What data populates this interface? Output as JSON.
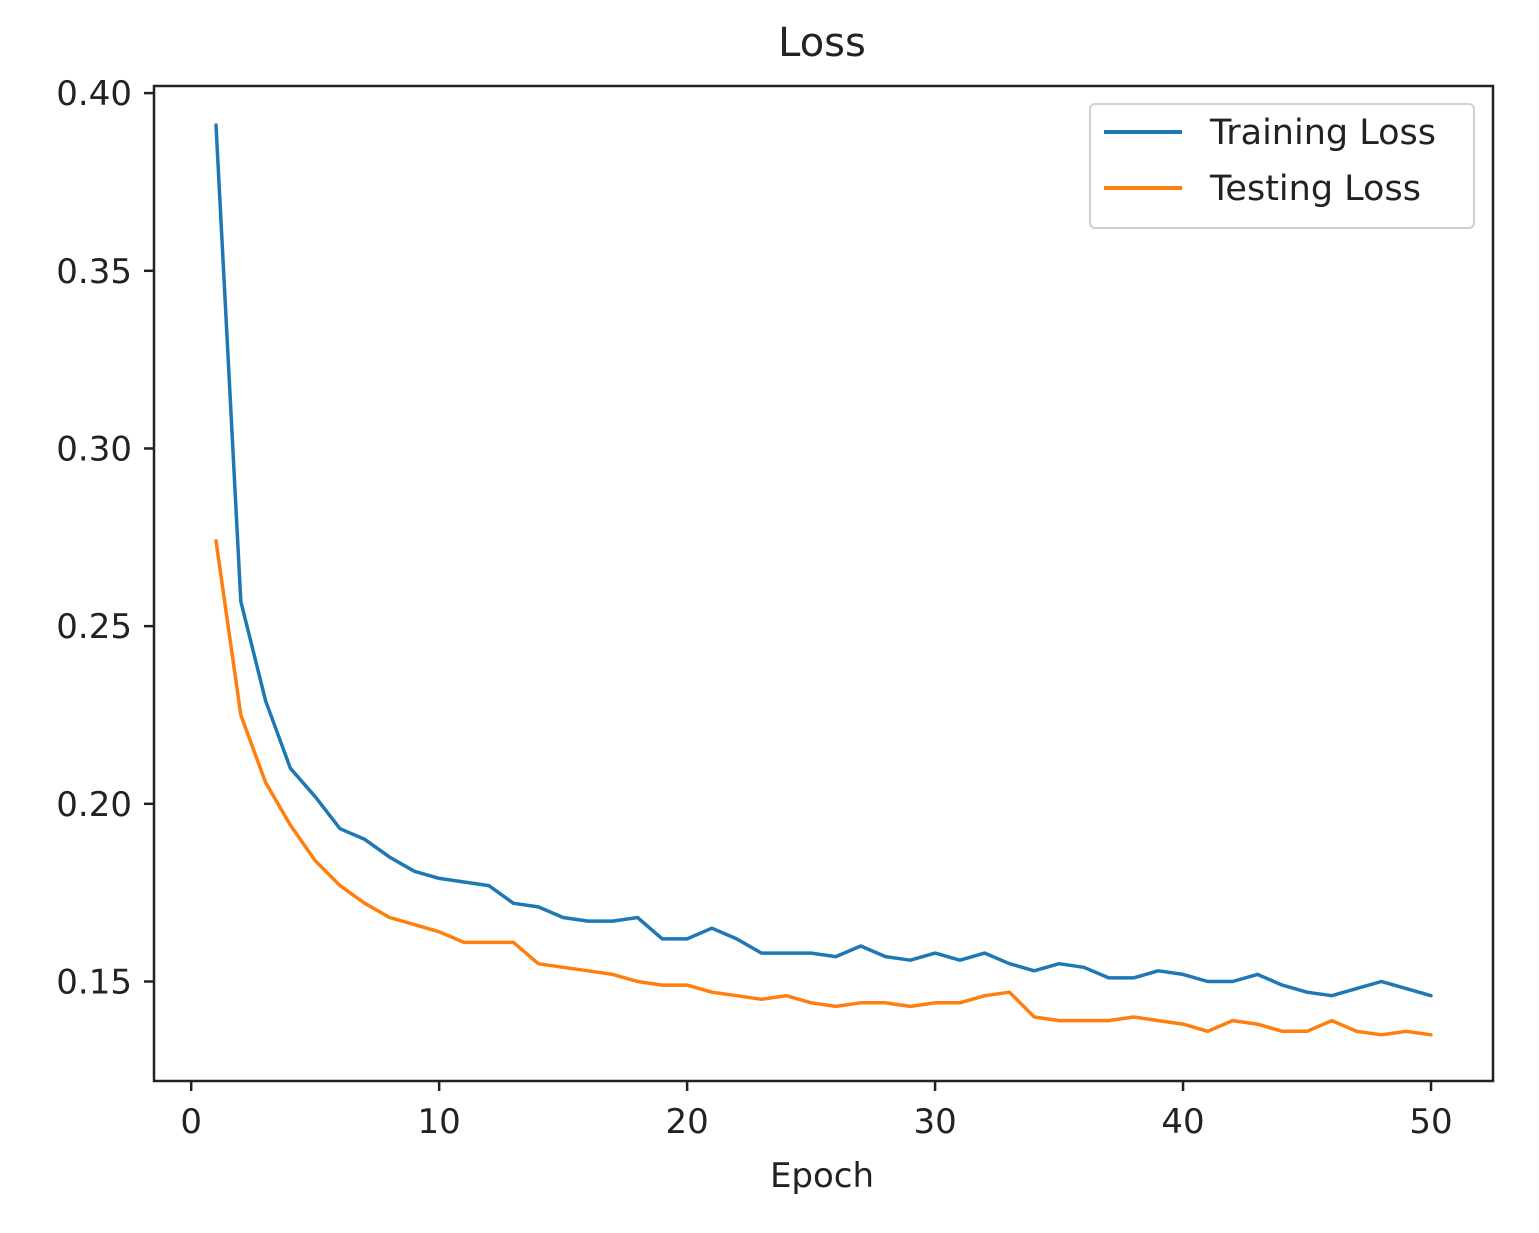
{
  "chart_data": {
    "type": "line",
    "title": "Loss",
    "xlabel": "Epoch",
    "ylabel": "",
    "xlim": [
      -1.5,
      52.5
    ],
    "ylim": [
      0.122,
      0.402
    ],
    "xticks": [
      0,
      10,
      20,
      30,
      40,
      50
    ],
    "xtick_labels": [
      "0",
      "10",
      "20",
      "30",
      "40",
      "50"
    ],
    "yticks": [
      0.15,
      0.2,
      0.25,
      0.3,
      0.35,
      0.4
    ],
    "ytick_labels": [
      "0.15",
      "0.20",
      "0.25",
      "0.30",
      "0.35",
      "0.40"
    ],
    "grid": false,
    "legend_position": "top-right",
    "x": [
      1,
      2,
      3,
      4,
      5,
      6,
      7,
      8,
      9,
      10,
      11,
      12,
      13,
      14,
      15,
      16,
      17,
      18,
      19,
      20,
      21,
      22,
      23,
      24,
      25,
      26,
      27,
      28,
      29,
      30,
      31,
      32,
      33,
      34,
      35,
      36,
      37,
      38,
      39,
      40,
      41,
      42,
      43,
      44,
      45,
      46,
      47,
      48,
      49,
      50
    ],
    "series": [
      {
        "name": "Training Loss",
        "color": "#1f77b4",
        "values": [
          0.391,
          0.257,
          0.229,
          0.21,
          0.202,
          0.193,
          0.19,
          0.185,
          0.181,
          0.179,
          0.178,
          0.177,
          0.172,
          0.171,
          0.168,
          0.167,
          0.167,
          0.168,
          0.162,
          0.162,
          0.165,
          0.162,
          0.158,
          0.158,
          0.158,
          0.157,
          0.16,
          0.157,
          0.156,
          0.158,
          0.156,
          0.158,
          0.155,
          0.153,
          0.155,
          0.154,
          0.151,
          0.151,
          0.153,
          0.152,
          0.15,
          0.15,
          0.152,
          0.149,
          0.147,
          0.146,
          0.148,
          0.15,
          0.148,
          0.146
        ]
      },
      {
        "name": "Testing Loss",
        "color": "#ff7f0e",
        "values": [
          0.274,
          0.225,
          0.206,
          0.194,
          0.184,
          0.177,
          0.172,
          0.168,
          0.166,
          0.164,
          0.161,
          0.161,
          0.161,
          0.155,
          0.154,
          0.153,
          0.152,
          0.15,
          0.149,
          0.149,
          0.147,
          0.146,
          0.145,
          0.146,
          0.144,
          0.143,
          0.144,
          0.144,
          0.143,
          0.144,
          0.144,
          0.146,
          0.147,
          0.14,
          0.139,
          0.139,
          0.139,
          0.14,
          0.139,
          0.138,
          0.136,
          0.139,
          0.138,
          0.136,
          0.136,
          0.139,
          0.136,
          0.135,
          0.136,
          0.135
        ]
      }
    ]
  }
}
